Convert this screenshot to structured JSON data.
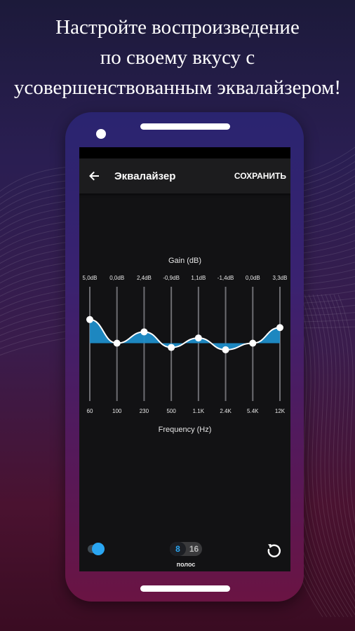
{
  "promo": {
    "lines": [
      "Настройте воспроизведение",
      "по своему вкусу с",
      "усовершенствованным эквалайзером!"
    ]
  },
  "appbar": {
    "back_icon": "arrow-left-icon",
    "title": "Эквалайзер",
    "save_label": "СОХРАНИТЬ"
  },
  "chart_data": {
    "type": "area",
    "title": "Gain (dB)",
    "xlabel": "Frequency (Hz)",
    "categories": [
      "60",
      "100",
      "230",
      "500",
      "1.1K",
      "2.4K",
      "5.4K",
      "12K"
    ],
    "gain_labels": [
      "5,0dB",
      "0,0dB",
      "2,4dB",
      "-0,9dB",
      "1,1dB",
      "-1,4dB",
      "0,0dB",
      "3,3dB"
    ],
    "series": [
      {
        "values": [
          5.0,
          0.0,
          2.4,
          -0.9,
          1.1,
          -1.4,
          0.0,
          3.3
        ]
      }
    ],
    "ylim": [
      -15,
      15
    ],
    "fill_color": "#1f8ec9",
    "line_color": "#ffffff"
  },
  "controls": {
    "bands_options": [
      "8",
      "16"
    ],
    "bands_selected": "8",
    "bands_label": "полос",
    "toggle_on": true,
    "accent_color": "#2aa6f2",
    "reset_icon": "reset-icon"
  }
}
